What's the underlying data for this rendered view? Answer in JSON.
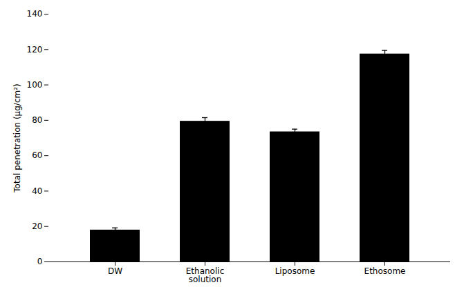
{
  "chart_data": {
    "type": "bar",
    "categories": [
      "DW",
      "Ethanolic\nsolution",
      "Liposome",
      "Ethosome"
    ],
    "values": [
      18.0,
      79.5,
      73.5,
      117.5
    ],
    "errors": [
      1.2,
      2.0,
      1.5,
      2.0
    ],
    "ylabel": "Total penetration (μg/cm²)",
    "ylim": [
      0,
      140
    ],
    "yticks": [
      0,
      20,
      40,
      60,
      80,
      100,
      120,
      140
    ],
    "grid": false
  }
}
